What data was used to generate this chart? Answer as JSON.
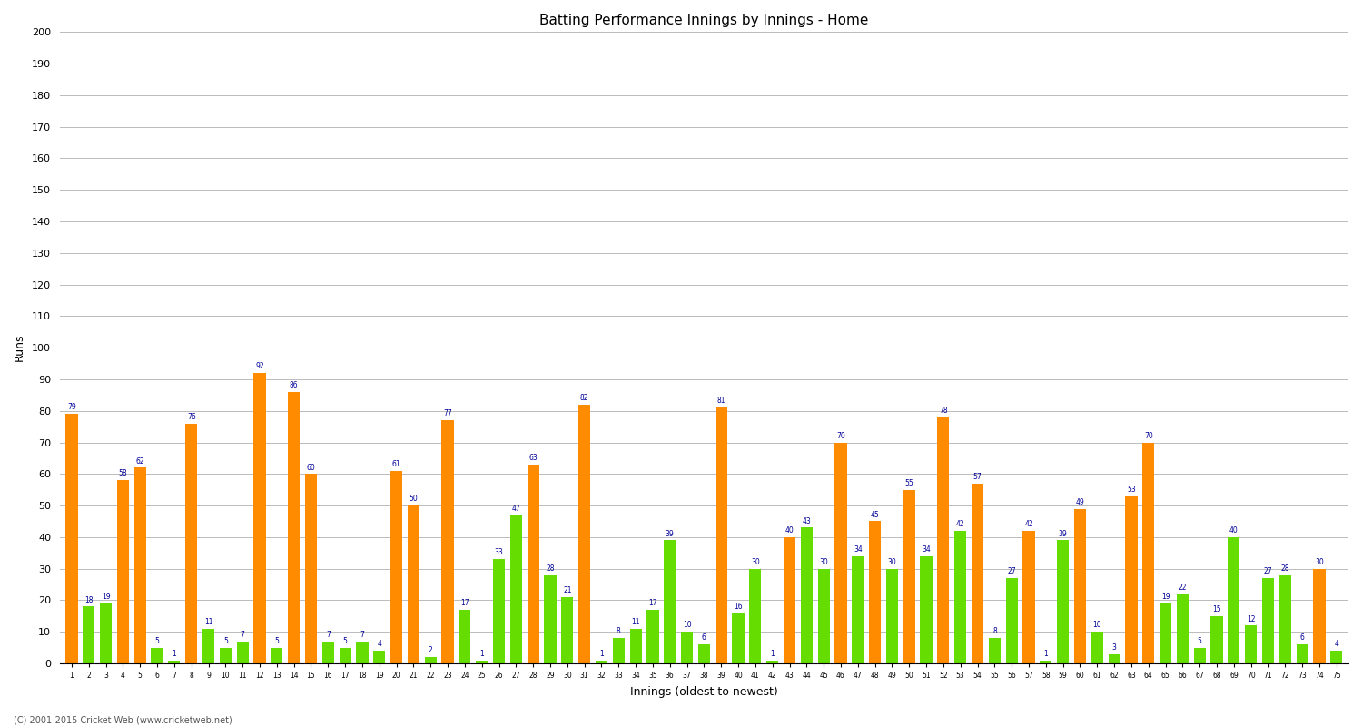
{
  "title": "Batting Performance Innings by Innings - Home",
  "xlabel": "Innings (oldest to newest)",
  "ylabel": "Runs",
  "background_color": "#ffffff",
  "grid_color": "#bbbbbb",
  "orange_color": "#ff8c00",
  "green_color": "#66dd00",
  "label_color": "#000099",
  "copyright": "(C) 2001-2015 Cricket Web (www.cricketweb.net)",
  "bars": [
    {
      "x": 1,
      "val": 79,
      "color": "orange"
    },
    {
      "x": 2,
      "val": 18,
      "color": "green"
    },
    {
      "x": 3,
      "val": 19,
      "color": "green"
    },
    {
      "x": 4,
      "val": 58,
      "color": "orange"
    },
    {
      "x": 5,
      "val": 62,
      "color": "orange"
    },
    {
      "x": 6,
      "val": 5,
      "color": "green"
    },
    {
      "x": 7,
      "val": 1,
      "color": "green"
    },
    {
      "x": 8,
      "val": 76,
      "color": "orange"
    },
    {
      "x": 9,
      "val": 11,
      "color": "green"
    },
    {
      "x": 10,
      "val": 5,
      "color": "green"
    },
    {
      "x": 11,
      "val": 7,
      "color": "green"
    },
    {
      "x": 12,
      "val": 92,
      "color": "orange"
    },
    {
      "x": 13,
      "val": 5,
      "color": "green"
    },
    {
      "x": 14,
      "val": 86,
      "color": "orange"
    },
    {
      "x": 15,
      "val": 60,
      "color": "orange"
    },
    {
      "x": 16,
      "val": 7,
      "color": "green"
    },
    {
      "x": 17,
      "val": 5,
      "color": "green"
    },
    {
      "x": 18,
      "val": 7,
      "color": "green"
    },
    {
      "x": 19,
      "val": 4,
      "color": "green"
    },
    {
      "x": 20,
      "val": 61,
      "color": "orange"
    },
    {
      "x": 21,
      "val": 50,
      "color": "orange"
    },
    {
      "x": 22,
      "val": 2,
      "color": "green"
    },
    {
      "x": 23,
      "val": 77,
      "color": "orange"
    },
    {
      "x": 24,
      "val": 17,
      "color": "green"
    },
    {
      "x": 25,
      "val": 1,
      "color": "green"
    },
    {
      "x": 26,
      "val": 33,
      "color": "green"
    },
    {
      "x": 27,
      "val": 47,
      "color": "green"
    },
    {
      "x": 28,
      "val": 63,
      "color": "orange"
    },
    {
      "x": 29,
      "val": 28,
      "color": "green"
    },
    {
      "x": 30,
      "val": 21,
      "color": "green"
    },
    {
      "x": 31,
      "val": 82,
      "color": "orange"
    },
    {
      "x": 32,
      "val": 1,
      "color": "green"
    },
    {
      "x": 33,
      "val": 8,
      "color": "green"
    },
    {
      "x": 34,
      "val": 11,
      "color": "green"
    },
    {
      "x": 35,
      "val": 17,
      "color": "green"
    },
    {
      "x": 36,
      "val": 39,
      "color": "green"
    },
    {
      "x": 37,
      "val": 10,
      "color": "green"
    },
    {
      "x": 38,
      "val": 6,
      "color": "green"
    },
    {
      "x": 39,
      "val": 81,
      "color": "orange"
    },
    {
      "x": 40,
      "val": 16,
      "color": "green"
    },
    {
      "x": 41,
      "val": 30,
      "color": "green"
    },
    {
      "x": 42,
      "val": 1,
      "color": "green"
    },
    {
      "x": 43,
      "val": 40,
      "color": "orange"
    },
    {
      "x": 44,
      "val": 43,
      "color": "green"
    },
    {
      "x": 45,
      "val": 30,
      "color": "green"
    },
    {
      "x": 46,
      "val": 70,
      "color": "orange"
    },
    {
      "x": 47,
      "val": 34,
      "color": "green"
    },
    {
      "x": 48,
      "val": 45,
      "color": "orange"
    },
    {
      "x": 49,
      "val": 30,
      "color": "green"
    },
    {
      "x": 50,
      "val": 55,
      "color": "orange"
    },
    {
      "x": 51,
      "val": 34,
      "color": "green"
    },
    {
      "x": 52,
      "val": 78,
      "color": "orange"
    },
    {
      "x": 53,
      "val": 42,
      "color": "green"
    },
    {
      "x": 54,
      "val": 57,
      "color": "orange"
    },
    {
      "x": 55,
      "val": 8,
      "color": "green"
    },
    {
      "x": 56,
      "val": 27,
      "color": "green"
    },
    {
      "x": 57,
      "val": 42,
      "color": "orange"
    },
    {
      "x": 58,
      "val": 1,
      "color": "green"
    },
    {
      "x": 59,
      "val": 39,
      "color": "green"
    },
    {
      "x": 60,
      "val": 49,
      "color": "orange"
    },
    {
      "x": 61,
      "val": 10,
      "color": "green"
    },
    {
      "x": 62,
      "val": 3,
      "color": "green"
    },
    {
      "x": 63,
      "val": 53,
      "color": "orange"
    },
    {
      "x": 64,
      "val": 70,
      "color": "orange"
    },
    {
      "x": 65,
      "val": 19,
      "color": "green"
    },
    {
      "x": 66,
      "val": 22,
      "color": "green"
    },
    {
      "x": 67,
      "val": 5,
      "color": "green"
    },
    {
      "x": 68,
      "val": 15,
      "color": "green"
    },
    {
      "x": 69,
      "val": 40,
      "color": "green"
    },
    {
      "x": 70,
      "val": 12,
      "color": "green"
    },
    {
      "x": 71,
      "val": 27,
      "color": "green"
    },
    {
      "x": 72,
      "val": 28,
      "color": "green"
    },
    {
      "x": 73,
      "val": 6,
      "color": "green"
    },
    {
      "x": 74,
      "val": 30,
      "color": "orange"
    },
    {
      "x": 75,
      "val": 4,
      "color": "green"
    }
  ]
}
